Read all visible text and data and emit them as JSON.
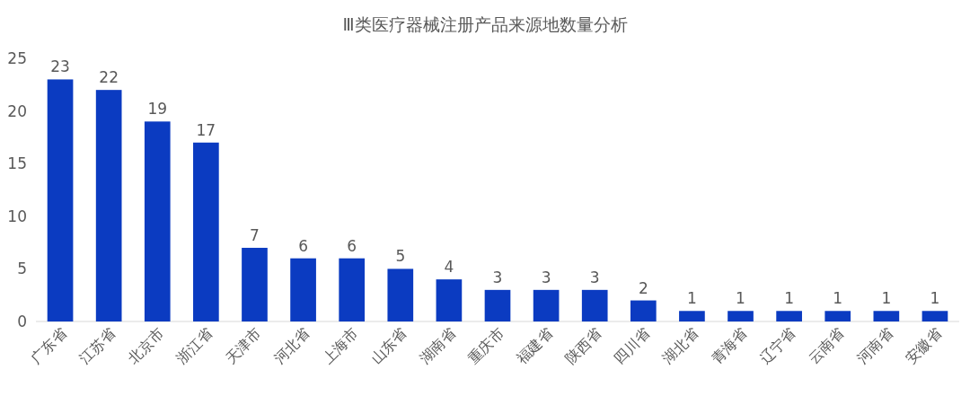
{
  "chart_data": {
    "type": "bar",
    "title": "Ⅲ类医疗器械注册产品来源地数量分析",
    "categories": [
      "广东省",
      "江苏省",
      "北京市",
      "浙江省",
      "天津市",
      "河北省",
      "上海市",
      "山东省",
      "湖南省",
      "重庆市",
      "福建省",
      "陕西省",
      "四川省",
      "湖北省",
      "青海省",
      "辽宁省",
      "云南省",
      "河南省",
      "安徽省"
    ],
    "values": [
      23,
      22,
      19,
      17,
      7,
      6,
      6,
      5,
      4,
      3,
      3,
      3,
      2,
      1,
      1,
      1,
      1,
      1,
      1
    ],
    "color": "#0b3bc1",
    "ylim": [
      0,
      25
    ],
    "yticks": [
      0,
      5,
      10,
      15,
      20,
      25
    ],
    "data_labels": true,
    "grid": false
  }
}
